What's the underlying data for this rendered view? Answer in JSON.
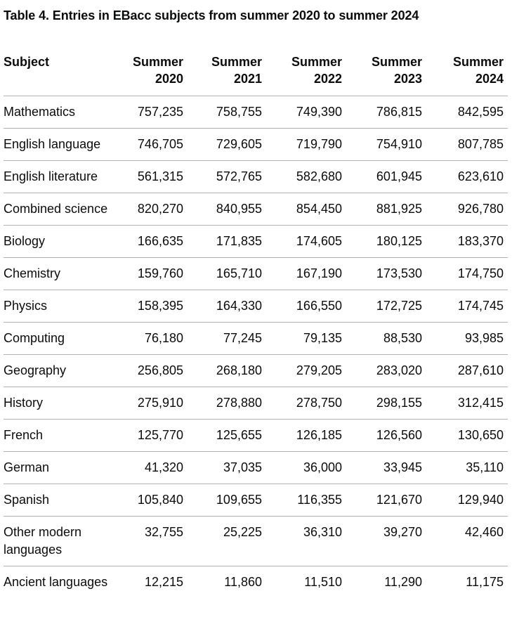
{
  "caption": "Table 4. Entries in EBacc subjects from summer 2020 to summer 2024",
  "headers": {
    "subject": "Subject",
    "years": [
      {
        "line1": "Summer",
        "line2": "2020"
      },
      {
        "line1": "Summer",
        "line2": "2021"
      },
      {
        "line1": "Summer",
        "line2": "2022"
      },
      {
        "line1": "Summer",
        "line2": "2023"
      },
      {
        "line1": "Summer",
        "line2": "2024"
      }
    ]
  },
  "rows": [
    {
      "subject": "Mathematics",
      "values": [
        "757,235",
        "758,755",
        "749,390",
        "786,815",
        "842,595"
      ]
    },
    {
      "subject": "English language",
      "values": [
        "746,705",
        "729,605",
        "719,790",
        "754,910",
        "807,785"
      ]
    },
    {
      "subject": "English literature",
      "values": [
        "561,315",
        "572,765",
        "582,680",
        "601,945",
        "623,610"
      ]
    },
    {
      "subject": "Combined science",
      "values": [
        "820,270",
        "840,955",
        "854,450",
        "881,925",
        "926,780"
      ]
    },
    {
      "subject": "Biology",
      "values": [
        "166,635",
        "171,835",
        "174,605",
        "180,125",
        "183,370"
      ]
    },
    {
      "subject": "Chemistry",
      "values": [
        "159,760",
        "165,710",
        "167,190",
        "173,530",
        "174,750"
      ]
    },
    {
      "subject": "Physics",
      "values": [
        "158,395",
        "164,330",
        "166,550",
        "172,725",
        "174,745"
      ]
    },
    {
      "subject": "Computing",
      "values": [
        "76,180",
        "77,245",
        "79,135",
        "88,530",
        "93,985"
      ]
    },
    {
      "subject": "Geography",
      "values": [
        "256,805",
        "268,180",
        "279,205",
        "283,020",
        "287,610"
      ]
    },
    {
      "subject": "History",
      "values": [
        "275,910",
        "278,880",
        "278,750",
        "298,155",
        "312,415"
      ]
    },
    {
      "subject": "French",
      "values": [
        "125,770",
        "125,655",
        "126,185",
        "126,560",
        "130,650"
      ]
    },
    {
      "subject": "German",
      "values": [
        "41,320",
        "37,035",
        "36,000",
        "33,945",
        "35,110"
      ]
    },
    {
      "subject": "Spanish",
      "values": [
        "105,840",
        "109,655",
        "116,355",
        "121,670",
        "129,940"
      ]
    },
    {
      "subject": "Other modern languages",
      "values": [
        "32,755",
        "25,225",
        "36,310",
        "39,270",
        "42,460"
      ]
    },
    {
      "subject": "Ancient languages",
      "values": [
        "12,215",
        "11,860",
        "11,510",
        "11,290",
        "11,175"
      ]
    }
  ]
}
